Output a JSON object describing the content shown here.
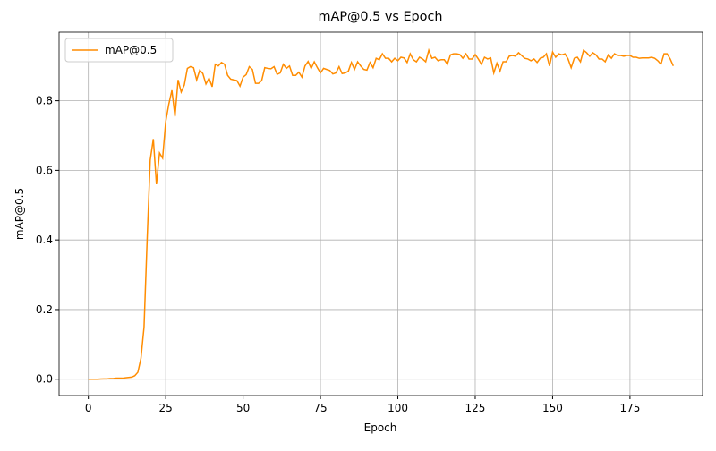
{
  "chart_data": {
    "type": "line",
    "title": "mAP@0.5 vs Epoch",
    "x_label": "Epoch",
    "y_label": "mAP@0.5",
    "x": [
      0,
      1,
      2,
      3,
      4,
      5,
      6,
      7,
      8,
      9,
      10,
      11,
      12,
      13,
      14,
      15,
      16,
      17,
      18,
      19,
      20,
      21,
      22,
      23,
      24,
      25,
      26,
      27,
      28,
      29,
      30,
      31,
      32,
      33,
      34,
      35,
      36,
      37,
      38,
      39,
      40,
      41,
      42,
      43,
      44,
      45,
      46,
      47,
      48,
      49,
      50,
      51,
      52,
      53,
      54,
      55,
      56,
      57,
      58,
      59,
      60,
      61,
      62,
      63,
      64,
      65,
      66,
      67,
      68,
      69,
      70,
      71,
      72,
      73,
      74,
      75,
      76,
      77,
      78,
      79,
      80,
      81,
      82,
      83,
      84,
      85,
      86,
      87,
      88,
      89,
      90,
      91,
      92,
      93,
      94,
      95,
      96,
      97,
      98,
      99,
      100,
      101,
      102,
      103,
      104,
      105,
      106,
      107,
      108,
      109,
      110,
      111,
      112,
      113,
      114,
      115,
      116,
      117,
      118,
      119,
      120,
      121,
      122,
      123,
      124,
      125,
      126,
      127,
      128,
      129,
      130,
      131,
      132,
      133,
      134,
      135,
      136,
      137,
      138,
      139,
      140,
      141,
      142,
      143,
      144,
      145,
      146,
      147,
      148,
      149,
      150,
      151,
      152,
      153,
      154,
      155,
      156,
      157,
      158,
      159,
      160,
      161,
      162,
      163,
      164,
      165,
      166,
      167,
      168,
      169,
      170,
      171,
      172,
      173,
      174,
      175,
      176,
      177,
      178,
      179,
      180,
      181,
      182,
      183,
      184,
      185,
      186,
      187,
      188,
      189
    ],
    "series": [
      {
        "name": "mAP@0.5",
        "color": "#ff8c00",
        "values": [
          0,
          0,
          0,
          0,
          0.0005,
          0.001,
          0.001,
          0.002,
          0.002,
          0.003,
          0.003,
          0.003,
          0.004,
          0.005,
          0.006,
          0.01,
          0.02,
          0.06,
          0.15,
          0.4,
          0.63,
          0.69,
          0.56,
          0.65,
          0.635,
          0.74,
          0.79,
          0.83,
          0.755,
          0.86,
          0.825,
          0.845,
          0.893,
          0.898,
          0.895,
          0.86,
          0.888,
          0.878,
          0.848,
          0.865,
          0.84,
          0.905,
          0.9,
          0.91,
          0.905,
          0.873,
          0.862,
          0.86,
          0.858,
          0.842,
          0.868,
          0.875,
          0.898,
          0.89,
          0.85,
          0.85,
          0.858,
          0.895,
          0.893,
          0.892,
          0.898,
          0.876,
          0.88,
          0.905,
          0.893,
          0.9,
          0.873,
          0.873,
          0.882,
          0.868,
          0.9,
          0.913,
          0.893,
          0.912,
          0.895,
          0.88,
          0.893,
          0.89,
          0.887,
          0.877,
          0.88,
          0.898,
          0.878,
          0.88,
          0.885,
          0.91,
          0.89,
          0.912,
          0.9,
          0.89,
          0.888,
          0.91,
          0.895,
          0.922,
          0.918,
          0.935,
          0.922,
          0.922,
          0.912,
          0.922,
          0.915,
          0.925,
          0.923,
          0.91,
          0.935,
          0.918,
          0.912,
          0.925,
          0.92,
          0.912,
          0.945,
          0.922,
          0.925,
          0.915,
          0.918,
          0.918,
          0.905,
          0.932,
          0.935,
          0.935,
          0.933,
          0.922,
          0.935,
          0.92,
          0.92,
          0.933,
          0.92,
          0.905,
          0.925,
          0.92,
          0.923,
          0.88,
          0.908,
          0.885,
          0.912,
          0.912,
          0.928,
          0.93,
          0.928,
          0.938,
          0.93,
          0.922,
          0.92,
          0.915,
          0.92,
          0.91,
          0.922,
          0.925,
          0.935,
          0.9,
          0.94,
          0.925,
          0.935,
          0.932,
          0.935,
          0.92,
          0.895,
          0.922,
          0.925,
          0.912,
          0.945,
          0.938,
          0.928,
          0.938,
          0.932,
          0.92,
          0.92,
          0.912,
          0.932,
          0.922,
          0.935,
          0.93,
          0.93,
          0.928,
          0.93,
          0.93,
          0.925,
          0.925,
          0.922,
          0.923,
          0.923,
          0.923,
          0.925,
          0.922,
          0.915,
          0.905,
          0.935,
          0.935,
          0.92,
          0.9
        ]
      }
    ],
    "xlim": [
      -9.45,
      198.45
    ],
    "xticks": [
      0,
      25,
      50,
      75,
      100,
      125,
      150,
      175
    ],
    "ylim": [
      -0.047,
      0.997
    ],
    "yticks": [
      {
        "value": 0,
        "label": "0.0"
      },
      0.2,
      0.4,
      0.6,
      0.8
    ],
    "grid": true,
    "legend": "upper left"
  }
}
